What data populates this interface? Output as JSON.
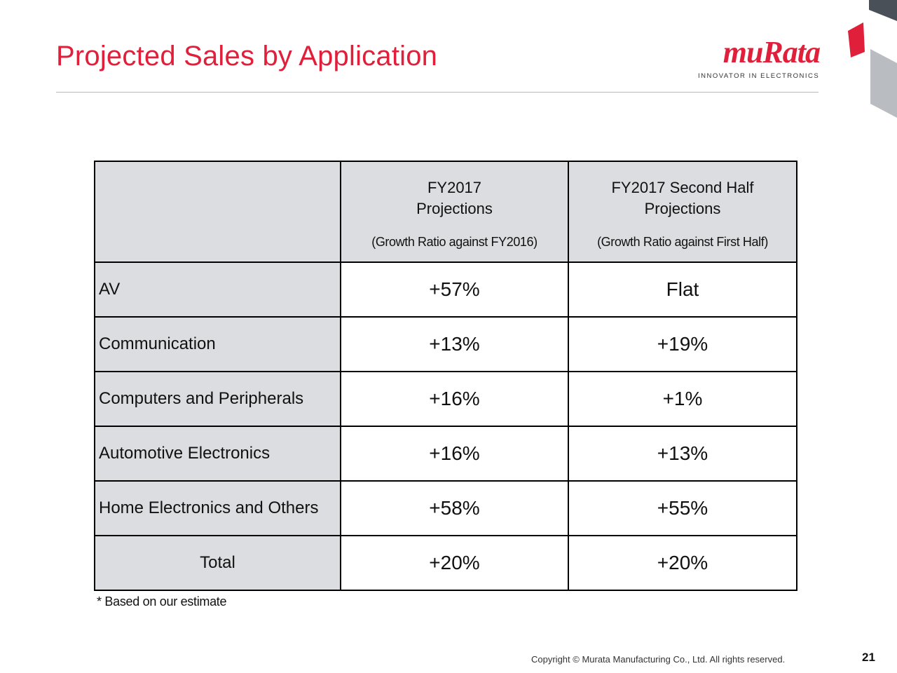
{
  "slide": {
    "title": "Projected Sales by Application",
    "brand": {
      "logo_text": "muRata",
      "tagline": "INNOVATOR IN ELECTRONICS",
      "color": "#e0203a"
    }
  },
  "table": {
    "header": {
      "col2_line1": "FY2017",
      "col2_line2": "Projections",
      "col2_note": "(Growth Ratio against FY2016)",
      "col3_line1": "FY2017 Second Half",
      "col3_line2": "Projections",
      "col3_note": "(Growth Ratio against First Half)"
    },
    "rows": [
      {
        "label": "AV",
        "fy2017": "+57%",
        "second_half": "Flat"
      },
      {
        "label": "Communication",
        "fy2017": "+13%",
        "second_half": "+19%"
      },
      {
        "label": "Computers and Peripherals",
        "fy2017": "+16%",
        "second_half": "+1%"
      },
      {
        "label": "Automotive Electronics",
        "fy2017": "+16%",
        "second_half": "+13%"
      },
      {
        "label": "Home Electronics and Others",
        "fy2017": "+58%",
        "second_half": "+55%"
      },
      {
        "label": "Total",
        "fy2017": "+20%",
        "second_half": "+20%"
      }
    ],
    "header_bg": "#dcdde0"
  },
  "footnote": "* Based on our estimate",
  "footer": {
    "copyright": "Copyright © Murata Manufacturing Co., Ltd. All rights reserved.",
    "page_number": "21"
  }
}
